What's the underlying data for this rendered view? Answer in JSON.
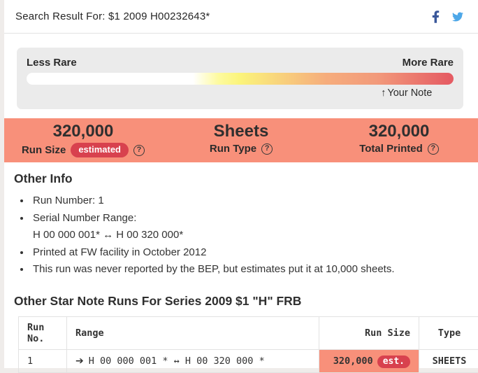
{
  "header": {
    "title": "Search Result For: $1 2009 H00232643*"
  },
  "rarity": {
    "less_label": "Less Rare",
    "more_label": "More Rare",
    "marker_arrow": "↑",
    "marker_label": "Your Note",
    "marker_position_pct": 83
  },
  "help_glyph": "?",
  "stats": {
    "columns": [
      {
        "value": "320,000",
        "label": "Run Size",
        "badge": "estimated"
      },
      {
        "value": "Sheets",
        "label": "Run Type"
      },
      {
        "value": "320,000",
        "label": "Total Printed"
      }
    ]
  },
  "other_info": {
    "heading": "Other Info",
    "items": [
      [
        "Run Number: 1"
      ],
      [
        "Serial Number Range:",
        "H 00 000 001* ↔ H 00 320 000*"
      ],
      [
        "Printed at FW facility in October 2012"
      ],
      [
        "This run was never reported by the BEP, but estimates put it at 10,000 sheets."
      ]
    ]
  },
  "runs_table": {
    "heading": "Other Star Note Runs For Series 2009 $1 \"H\" FRB",
    "columns": [
      "Run No.",
      "Range",
      "Run Size",
      "Type"
    ],
    "rows": [
      {
        "run_no": "1",
        "range_arrow": "➔",
        "range": "H 00 000 001 * ↔ H 00 320 000 *",
        "run_size": "320,000",
        "run_size_badge": "est.",
        "type": "SHEETS"
      }
    ]
  },
  "colors": {
    "salmon_banner": "#f8907a",
    "badge_red": "#d8414e",
    "facebook_blue": "#39579a",
    "twitter_blue": "#4da7e8",
    "gradient_end_red": "#e55c63"
  }
}
